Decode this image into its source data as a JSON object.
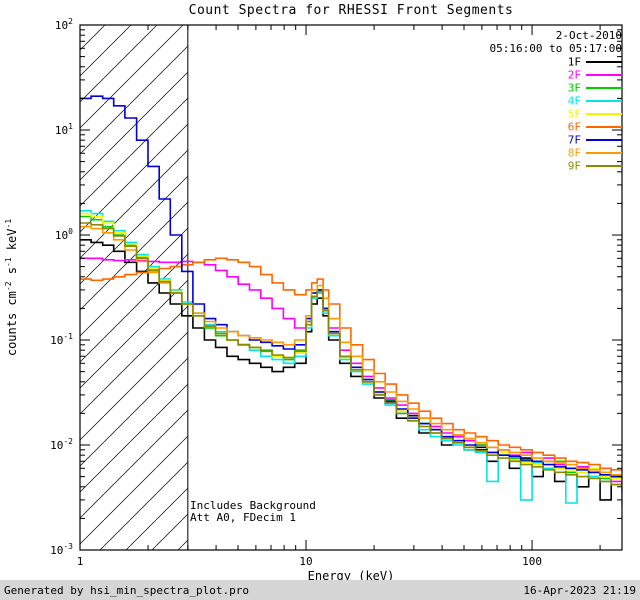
{
  "title": "Count Spectra for RHESSI Front Segments",
  "legend": {
    "date": "2-Oct-2010",
    "time": "05:16:00 to 05:17:00"
  },
  "annotations": {
    "background": "Includes Background",
    "attenuator": "Att A0, FDecim 1"
  },
  "footer": {
    "generator": "Generated by hsi_min_spectra_plot.pro",
    "timestamp": "16-Apr-2023 21:19"
  },
  "chart_data": {
    "type": "line",
    "title": "Count Spectra for RHESSI Front Segments",
    "xlabel": "Energy (keV)",
    "ylabel": "counts cm^-2 s^-1 keV^-1",
    "ylabel_parts": [
      {
        "t": "counts cm"
      },
      {
        "sup": "-2"
      },
      {
        "t": " s"
      },
      {
        "sup": "-1"
      },
      {
        "t": " keV"
      },
      {
        "sup": "-1"
      }
    ],
    "xscale": "log",
    "yscale": "log",
    "xlim": [
      1,
      250
    ],
    "ylim": [
      0.001,
      100
    ],
    "xtick_values": [
      1,
      10,
      100
    ],
    "xtick_labels": [
      "1",
      "10",
      "100"
    ],
    "ytick_values": [
      100,
      10,
      1,
      0.1,
      0.01,
      0.001
    ],
    "ytick_labels": [
      "10^2",
      "10^1",
      "10^0",
      "10^-1",
      "10^-2",
      "10^-3"
    ],
    "grid": false,
    "legend_position": "top-right",
    "hatch_region": {
      "xmin": 1,
      "xmax": 3
    },
    "x": [
      1.0,
      1.12,
      1.26,
      1.41,
      1.58,
      1.78,
      2.0,
      2.24,
      2.51,
      2.82,
      3.16,
      3.55,
      3.98,
      4.47,
      5.01,
      5.62,
      6.31,
      7.08,
      7.94,
      8.91,
      10.0,
      10.6,
      11.2,
      11.9,
      12.6,
      14.1,
      15.8,
      17.8,
      20.0,
      22.4,
      25.1,
      28.2,
      31.6,
      35.5,
      39.8,
      44.7,
      50.1,
      56.2,
      63.1,
      70.8,
      79.4,
      89.1,
      100,
      112,
      126,
      141,
      158,
      178,
      200,
      224,
      250
    ],
    "series": [
      {
        "name": "1F",
        "color": "#000000",
        "values": [
          0.9,
          0.85,
          0.8,
          0.7,
          0.55,
          0.45,
          0.35,
          0.28,
          0.22,
          0.17,
          0.13,
          0.1,
          0.085,
          0.07,
          0.065,
          0.06,
          0.055,
          0.05,
          0.055,
          0.06,
          0.12,
          0.22,
          0.25,
          0.17,
          0.1,
          0.06,
          0.045,
          0.04,
          0.028,
          0.026,
          0.018,
          0.019,
          0.013,
          0.014,
          0.01,
          0.012,
          0.009,
          0.0095,
          0.007,
          0.009,
          0.006,
          0.0075,
          0.005,
          0.007,
          0.0045,
          0.006,
          0.004,
          0.0055,
          0.003,
          0.005,
          0.0035
        ]
      },
      {
        "name": "2F",
        "color": "#ff00ff",
        "values": [
          0.6,
          0.6,
          0.58,
          0.57,
          0.58,
          0.57,
          0.56,
          0.55,
          0.55,
          0.56,
          0.55,
          0.52,
          0.46,
          0.4,
          0.34,
          0.3,
          0.25,
          0.2,
          0.16,
          0.13,
          0.15,
          0.25,
          0.28,
          0.2,
          0.13,
          0.08,
          0.06,
          0.045,
          0.035,
          0.028,
          0.024,
          0.02,
          0.018,
          0.015,
          0.013,
          0.012,
          0.011,
          0.01,
          0.0095,
          0.009,
          0.008,
          0.0085,
          0.007,
          0.0075,
          0.0065,
          0.006,
          0.0062,
          0.0055,
          0.006,
          0.0045,
          0.005
        ]
      },
      {
        "name": "3F",
        "color": "#00cc00",
        "values": [
          1.5,
          1.4,
          1.2,
          1.0,
          0.8,
          0.62,
          0.47,
          0.36,
          0.28,
          0.22,
          0.17,
          0.13,
          0.11,
          0.1,
          0.09,
          0.085,
          0.08,
          0.07,
          0.065,
          0.08,
          0.15,
          0.28,
          0.3,
          0.2,
          0.12,
          0.07,
          0.055,
          0.042,
          0.032,
          0.027,
          0.021,
          0.018,
          0.016,
          0.013,
          0.012,
          0.011,
          0.0095,
          0.01,
          0.0085,
          0.008,
          0.0075,
          0.007,
          0.0068,
          0.006,
          0.007,
          0.0055,
          0.006,
          0.005,
          0.0048,
          0.0052,
          0.004
        ]
      },
      {
        "name": "4F",
        "color": "#00e5ee",
        "values": [
          1.7,
          1.6,
          1.35,
          1.1,
          0.85,
          0.65,
          0.5,
          0.38,
          0.3,
          0.23,
          0.18,
          0.14,
          0.12,
          0.1,
          0.09,
          0.08,
          0.07,
          0.065,
          0.06,
          0.07,
          0.13,
          0.25,
          0.28,
          0.18,
          0.11,
          0.065,
          0.05,
          0.038,
          0.03,
          0.024,
          0.02,
          0.017,
          0.014,
          0.012,
          0.011,
          0.01,
          0.009,
          0.0085,
          0.0045,
          0.008,
          0.007,
          0.003,
          0.0068,
          0.006,
          0.0055,
          0.0028,
          0.0058,
          0.005,
          0.0045,
          0.0042,
          0.0025
        ]
      },
      {
        "name": "5F",
        "color": "#f5f500",
        "values": [
          1.6,
          1.5,
          1.3,
          1.05,
          0.82,
          0.63,
          0.48,
          0.37,
          0.29,
          0.22,
          0.17,
          0.135,
          0.115,
          0.1,
          0.092,
          0.085,
          0.078,
          0.07,
          0.068,
          0.075,
          0.14,
          0.26,
          0.29,
          0.19,
          0.115,
          0.068,
          0.052,
          0.04,
          0.031,
          0.025,
          0.021,
          0.018,
          0.015,
          0.013,
          0.0115,
          0.0105,
          0.0095,
          0.009,
          0.008,
          0.0085,
          0.0072,
          0.0068,
          0.0065,
          0.007,
          0.006,
          0.0058,
          0.0055,
          0.006,
          0.005,
          0.0048,
          0.0045
        ]
      },
      {
        "name": "6F",
        "color": "#ff6600",
        "values": [
          0.38,
          0.37,
          0.38,
          0.4,
          0.42,
          0.44,
          0.46,
          0.48,
          0.5,
          0.52,
          0.55,
          0.58,
          0.6,
          0.58,
          0.55,
          0.5,
          0.42,
          0.35,
          0.3,
          0.27,
          0.3,
          0.35,
          0.38,
          0.3,
          0.22,
          0.13,
          0.09,
          0.065,
          0.048,
          0.038,
          0.03,
          0.025,
          0.021,
          0.018,
          0.016,
          0.014,
          0.013,
          0.012,
          0.011,
          0.01,
          0.0095,
          0.009,
          0.0085,
          0.008,
          0.0075,
          0.007,
          0.0068,
          0.0065,
          0.006,
          0.0058,
          0.0055
        ]
      },
      {
        "name": "7F",
        "color": "#0000dd",
        "values": [
          20,
          21,
          20,
          17,
          13,
          8,
          4.5,
          2.2,
          1.0,
          0.45,
          0.22,
          0.16,
          0.14,
          0.12,
          0.11,
          0.1,
          0.095,
          0.088,
          0.082,
          0.09,
          0.16,
          0.28,
          0.3,
          0.2,
          0.12,
          0.07,
          0.055,
          0.042,
          0.032,
          0.026,
          0.022,
          0.018,
          0.016,
          0.014,
          0.012,
          0.011,
          0.01,
          0.009,
          0.0085,
          0.008,
          0.0078,
          0.0072,
          0.007,
          0.0065,
          0.0062,
          0.006,
          0.0058,
          0.0055,
          0.0052,
          0.005,
          0.0048
        ]
      },
      {
        "name": "8F",
        "color": "#ff9900",
        "values": [
          1.2,
          1.15,
          1.05,
          0.9,
          0.72,
          0.56,
          0.44,
          0.35,
          0.28,
          0.22,
          0.18,
          0.15,
          0.13,
          0.12,
          0.11,
          0.105,
          0.1,
          0.095,
          0.09,
          0.1,
          0.17,
          0.3,
          0.33,
          0.25,
          0.16,
          0.095,
          0.07,
          0.052,
          0.04,
          0.032,
          0.026,
          0.022,
          0.018,
          0.016,
          0.014,
          0.0125,
          0.0115,
          0.0105,
          0.0095,
          0.009,
          0.0085,
          0.008,
          0.0075,
          0.007,
          0.0068,
          0.0065,
          0.006,
          0.0058,
          0.0055,
          0.0052,
          0.005
        ]
      },
      {
        "name": "9F",
        "color": "#8a8a00",
        "values": [
          1.3,
          1.25,
          1.15,
          0.98,
          0.78,
          0.6,
          0.46,
          0.36,
          0.28,
          0.22,
          0.17,
          0.135,
          0.115,
          0.1,
          0.09,
          0.085,
          0.078,
          0.072,
          0.068,
          0.078,
          0.14,
          0.26,
          0.29,
          0.19,
          0.115,
          0.07,
          0.052,
          0.04,
          0.03,
          0.025,
          0.02,
          0.017,
          0.015,
          0.013,
          0.0115,
          0.0105,
          0.0095,
          0.0088,
          0.008,
          0.0075,
          0.007,
          0.0065,
          0.0062,
          0.0058,
          0.0055,
          0.0052,
          0.005,
          0.0048,
          0.0045,
          0.0042,
          0.004
        ]
      }
    ]
  }
}
